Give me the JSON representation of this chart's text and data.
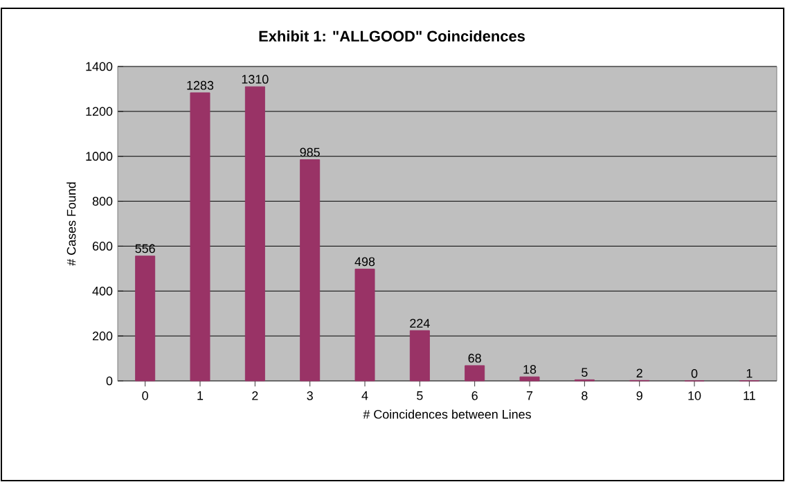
{
  "chart_data": {
    "type": "bar",
    "title": "Exhibit 1: \"ALLGOOD\" Coincidences",
    "xlabel": "# Coincidences between Lines",
    "ylabel": "# Cases Found",
    "categories": [
      "0",
      "1",
      "2",
      "3",
      "4",
      "5",
      "6",
      "7",
      "8",
      "9",
      "10",
      "11"
    ],
    "values": [
      556,
      1283,
      1310,
      985,
      498,
      224,
      68,
      18,
      5,
      2,
      0,
      1
    ],
    "color": "#993366",
    "ylim": [
      0,
      1400
    ],
    "yticks": [
      0,
      200,
      400,
      600,
      800,
      1000,
      1200,
      1400
    ],
    "grid": "y",
    "data_labels": true
  }
}
